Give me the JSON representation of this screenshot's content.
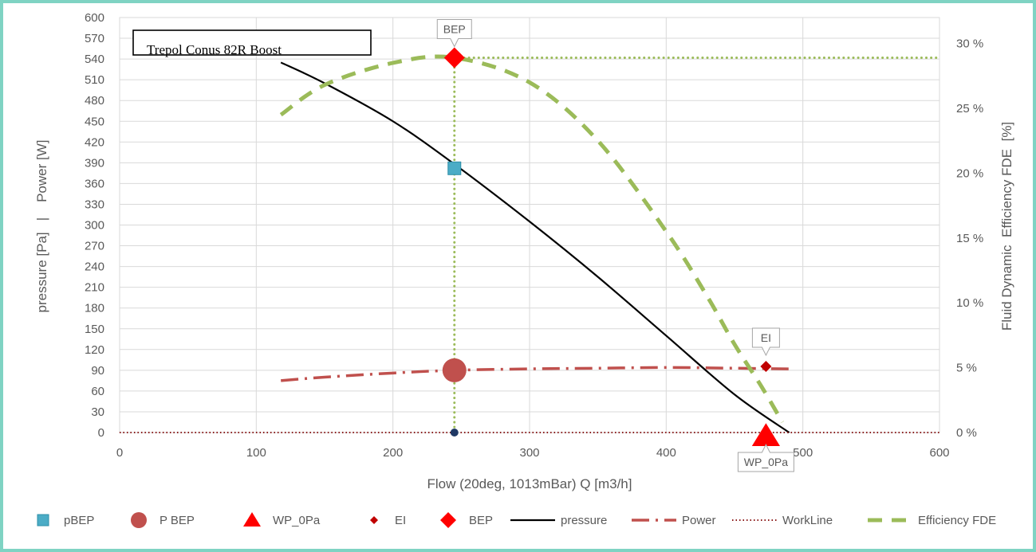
{
  "chart_data": {
    "type": "line",
    "title": "Trepol Conus 82R Boost",
    "xlabel": "Flow (20deg, 1013mBar) Q [m3/h]",
    "ylabel": "pressure [Pa]   |    Power [W]",
    "y2label": "Fluid Dynamic  Efficiency FDE  [%]",
    "xlim": [
      0,
      600
    ],
    "ylim": [
      0,
      600
    ],
    "y2lim": [
      0,
      32
    ],
    "x_ticks": [
      0,
      100,
      200,
      300,
      400,
      500,
      600
    ],
    "y_ticks": [
      0,
      30,
      60,
      90,
      120,
      150,
      180,
      210,
      240,
      270,
      300,
      330,
      360,
      390,
      420,
      450,
      480,
      510,
      540,
      570,
      600
    ],
    "y2_ticks": [
      0,
      5,
      10,
      15,
      20,
      25,
      30
    ],
    "y2_tick_labels": [
      "0 %",
      "5 %",
      "10 %",
      "15 %",
      "20 %",
      "25 %",
      "30 %"
    ],
    "grid": true,
    "legend_position": "bottom",
    "series": [
      {
        "name": "pressure",
        "axis": "left",
        "style": "solid",
        "color": "#000000",
        "x": [
          118,
          150,
          200,
          245,
          300,
          350,
          400,
          450,
          490
        ],
        "y": [
          535,
          505,
          450,
          388,
          305,
          225,
          140,
          55,
          0
        ]
      },
      {
        "name": "Power",
        "axis": "left",
        "style": "dashdot",
        "color": "#c0504d",
        "x": [
          118,
          150,
          200,
          245,
          300,
          350,
          400,
          450,
          490
        ],
        "y": [
          75,
          80,
          86,
          90,
          92,
          93,
          94,
          93,
          92
        ]
      },
      {
        "name": "WorkLine",
        "axis": "left",
        "style": "dotted",
        "color": "#8b1a1a",
        "x": [
          0,
          600
        ],
        "y": [
          0,
          0
        ]
      },
      {
        "name": "Efficiency FDE",
        "axis": "right",
        "style": "dashed",
        "color": "#9bbb59",
        "x": [
          118,
          150,
          200,
          245,
          300,
          350,
          400,
          430,
          450,
          470,
          485
        ],
        "y": [
          24.5,
          26.8,
          28.5,
          28.9,
          27.0,
          22.5,
          15.5,
          10.5,
          6.8,
          3.5,
          0.8
        ]
      }
    ],
    "markers": [
      {
        "name": "pBEP",
        "axis": "left",
        "shape": "square",
        "color": "#4bacc6",
        "x": 245,
        "y": 382
      },
      {
        "name": "P BEP",
        "axis": "left",
        "shape": "circle",
        "color": "#c0504d",
        "x": 245,
        "y": 90
      },
      {
        "name": "WP_0Pa",
        "axis": "left",
        "shape": "triangle",
        "color": "#ff0000",
        "x": 473,
        "y": 0
      },
      {
        "name": "EI",
        "axis": "right",
        "shape": "small-diamond",
        "color": "#c00000",
        "x": 473,
        "y": 5.1
      },
      {
        "name": "BEP",
        "axis": "right",
        "shape": "diamond",
        "color": "#ff0000",
        "x": 245,
        "y": 28.9
      }
    ],
    "guides": {
      "bep_vertical_x": 245,
      "bep_horizontal_y2": 28.9,
      "point_at_origin_line": {
        "x": 245,
        "y": 0,
        "color": "#1f3864"
      }
    },
    "callouts": [
      {
        "text": "BEP",
        "x": 245,
        "axis": "right",
        "y": 28.9,
        "direction": "above"
      },
      {
        "text": "EI",
        "x": 473,
        "axis": "right",
        "y": 5.1,
        "direction": "above"
      },
      {
        "text": "WP_0Pa",
        "x": 473,
        "axis": "left",
        "y": 0,
        "direction": "below"
      }
    ],
    "legend": [
      "pBEP",
      "P BEP",
      "WP_0Pa",
      "EI",
      "BEP",
      "pressure",
      "Power",
      "WorkLine",
      "Efficiency FDE"
    ]
  }
}
